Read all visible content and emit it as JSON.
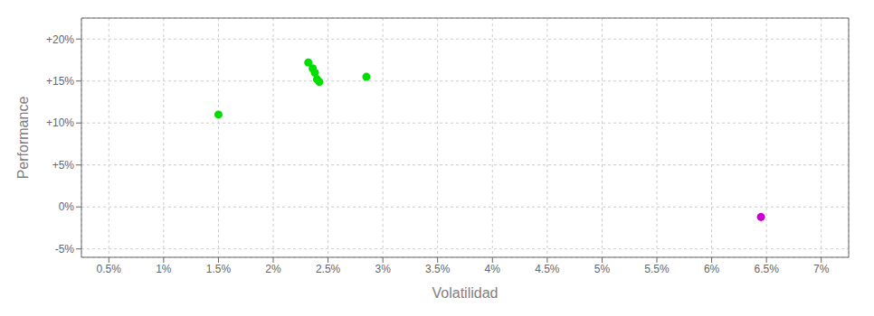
{
  "chart_data": {
    "type": "scatter",
    "xlabel": "Volatilidad",
    "ylabel": "Performance",
    "series": [
      {
        "color": "#00dd00",
        "x": [
          1.5,
          2.32,
          2.36,
          2.38,
          2.4,
          2.42,
          2.85
        ],
        "values": [
          11.0,
          17.2,
          16.5,
          16.0,
          15.2,
          14.9,
          15.5
        ]
      },
      {
        "color": "#cc00cc",
        "x": [
          6.45
        ],
        "values": [
          -1.2
        ]
      }
    ],
    "xlim": [
      0.25,
      7.25
    ],
    "ylim": [
      -6.0,
      22.5
    ],
    "xticks": [
      {
        "value": 0.5,
        "label": "0.5%"
      },
      {
        "value": 1.0,
        "label": "1%"
      },
      {
        "value": 1.5,
        "label": "1.5%"
      },
      {
        "value": 2.0,
        "label": "2%"
      },
      {
        "value": 2.5,
        "label": "2.5%"
      },
      {
        "value": 3.0,
        "label": "3%"
      },
      {
        "value": 3.5,
        "label": "3.5%"
      },
      {
        "value": 4.0,
        "label": "4%"
      },
      {
        "value": 4.5,
        "label": "4.5%"
      },
      {
        "value": 5.0,
        "label": "5%"
      },
      {
        "value": 5.5,
        "label": "5.5%"
      },
      {
        "value": 6.0,
        "label": "6%"
      },
      {
        "value": 6.5,
        "label": "6.5%"
      },
      {
        "value": 7.0,
        "label": "7%"
      }
    ],
    "yticks": [
      {
        "value": -5,
        "label": "-5%"
      },
      {
        "value": 0,
        "label": "0%"
      },
      {
        "value": 5,
        "label": "+5%"
      },
      {
        "value": 10,
        "label": "+10%"
      },
      {
        "value": 15,
        "label": "+15%"
      },
      {
        "value": 20,
        "label": "+20%"
      }
    ],
    "grid": true
  }
}
